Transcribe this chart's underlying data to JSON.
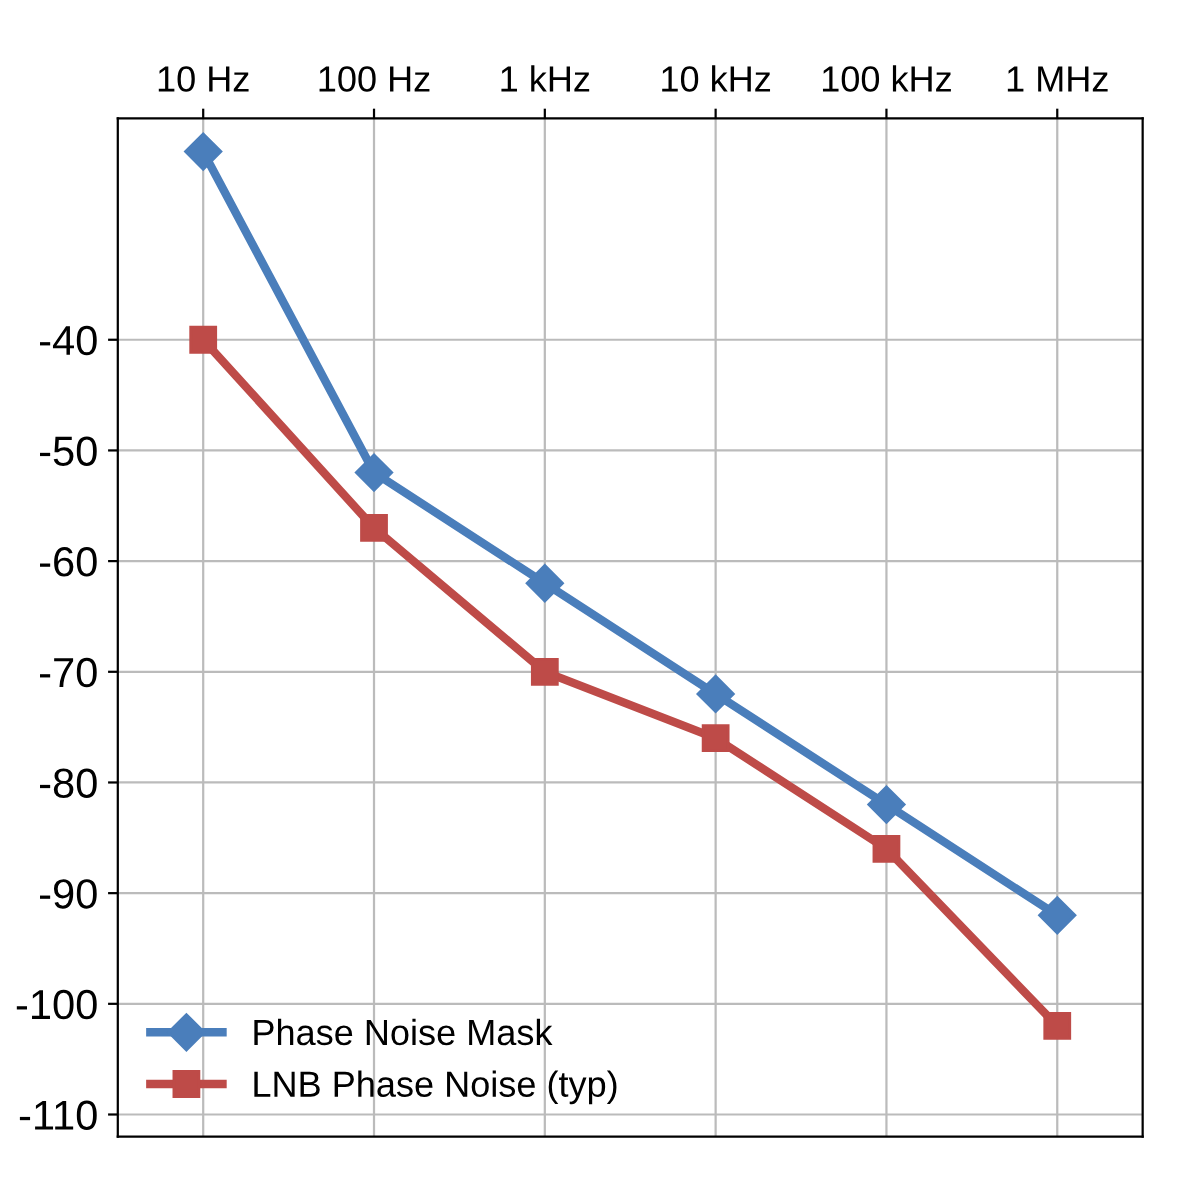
{
  "chart_data": {
    "type": "line",
    "categories": [
      "10 Hz",
      "100 Hz",
      "1 kHz",
      "10 kHz",
      "100 kHz",
      "1 MHz"
    ],
    "series": [
      {
        "name": "Phase Noise Mask",
        "color": "#4a7ebb",
        "marker": "diamond",
        "values": [
          -23,
          -52,
          -62,
          -72,
          -82,
          -92
        ]
      },
      {
        "name": "LNB Phase Noise (typ)",
        "color": "#be4b48",
        "marker": "square",
        "values": [
          -40,
          -57,
          -70,
          -76,
          -86,
          -102
        ]
      }
    ],
    "ylim": [
      -112,
      -20
    ],
    "yticks": [
      -110,
      -100,
      -90,
      -80,
      -70,
      -60,
      -50,
      -40
    ],
    "grid": true,
    "legend": "bottom left",
    "line_style": "solid"
  }
}
